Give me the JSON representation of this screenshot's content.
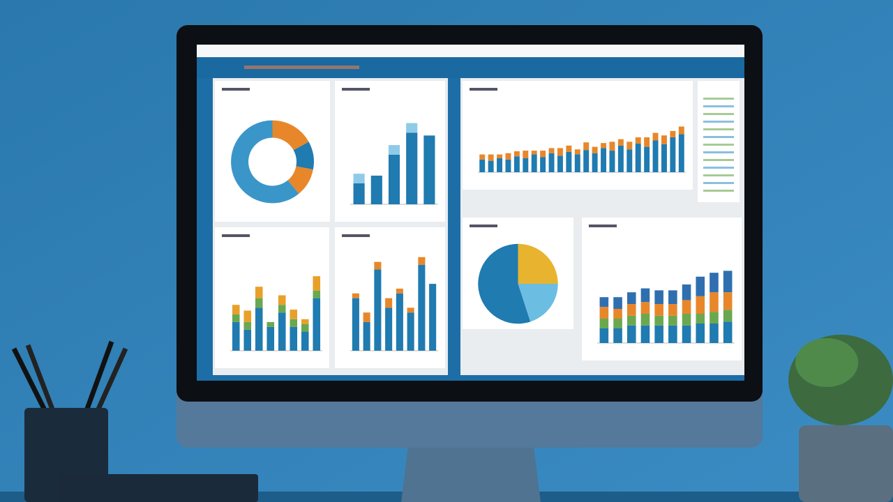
{
  "screen": {
    "panels": [
      {
        "type": "donut",
        "values": [
          17,
          11,
          11,
          61
        ],
        "colors": [
          "#e8872a",
          "#1f7bb0",
          "#e8872a",
          "#3a96c8"
        ]
      },
      {
        "type": "bar",
        "ylim": [
          0,
          100
        ],
        "series": [
          {
            "color": "#1f7bb0",
            "values": [
              22,
              30,
              52,
              75,
              72
            ]
          },
          {
            "color": "#8fcbe8",
            "values": [
              10,
              0,
              10,
              10,
              0
            ]
          }
        ]
      },
      {
        "type": "bar",
        "ylim": [
          0,
          100
        ],
        "series": [
          {
            "color": "#1f7bb0",
            "values": [
              30,
              22,
              45,
              25,
              40,
              25,
              20,
              55
            ]
          },
          {
            "color": "#6aa84f",
            "values": [
              8,
              8,
              10,
              5,
              8,
              8,
              8,
              8
            ]
          },
          {
            "color": "#e8a02a",
            "values": [
              10,
              12,
              12,
              0,
              10,
              10,
              5,
              15
            ]
          }
        ]
      },
      {
        "type": "bar",
        "ylim": [
          0,
          100
        ],
        "series": [
          {
            "color": "#1f7bb0",
            "values": [
              55,
              30,
              85,
              45,
              60,
              40,
              90,
              70
            ]
          },
          {
            "color": "#e8872a",
            "values": [
              5,
              10,
              8,
              10,
              5,
              5,
              8,
              0
            ]
          }
        ]
      },
      {
        "type": "bar",
        "ylim": [
          0,
          100
        ],
        "series": [
          {
            "color": "#1f7bb0",
            "values": [
              20,
              18,
              22,
              20,
              25,
              22,
              28,
              24,
              30,
              26,
              32,
              28,
              35,
              30,
              38,
              34,
              42,
              36,
              45,
              40,
              50,
              44,
              55,
              60
            ]
          },
          {
            "color": "#e8872a",
            "values": [
              8,
              10,
              6,
              10,
              8,
              12,
              6,
              10,
              8,
              12,
              10,
              8,
              12,
              10,
              8,
              14,
              10,
              12,
              10,
              15,
              12,
              14,
              10,
              12
            ]
          }
        ]
      },
      {
        "type": "pie",
        "values": [
          25,
          20,
          55
        ],
        "colors": [
          "#e8b430",
          "#6cbde2",
          "#1f7bb0"
        ]
      },
      {
        "type": "bar",
        "ylim": [
          0,
          100
        ],
        "series": [
          {
            "color": "#1f7bb0",
            "values": [
              15,
              15,
              18,
              18,
              18,
              18,
              18,
              20,
              20,
              22
            ]
          },
          {
            "color": "#6aa84f",
            "values": [
              10,
              10,
              10,
              12,
              10,
              10,
              12,
              10,
              12,
              12
            ]
          },
          {
            "color": "#e8872a",
            "values": [
              12,
              10,
              12,
              12,
              12,
              12,
              14,
              18,
              20,
              18
            ]
          },
          {
            "color": "#2f6fb0",
            "values": [
              10,
              12,
              12,
              14,
              14,
              14,
              16,
              20,
              20,
              22
            ]
          }
        ]
      }
    ]
  }
}
